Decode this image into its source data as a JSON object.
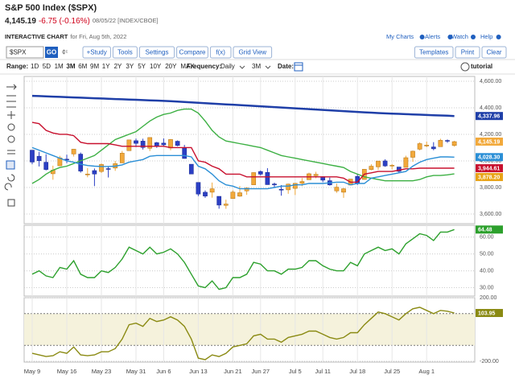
{
  "header": {
    "title": "S&P 500 Index ($SPX)",
    "price": "4,145.19",
    "change": "-6.75 (-0.16%)",
    "date": "08/05/22 [INDEX/CBOE]",
    "chart_label": "INTERACTIVE CHART",
    "chart_for": "for Fri, Aug 5th, 2022",
    "links": [
      "My Charts",
      "Alerts",
      "Watch",
      "Help"
    ]
  },
  "toolbar": {
    "symbol": "$SPX",
    "go": "GO",
    "buttons": [
      "+Study",
      "Tools",
      "Settings",
      "Compare",
      "f(x)",
      "Grid View"
    ],
    "right_buttons": [
      "Templates",
      "Print",
      "Clear"
    ],
    "range_label": "Range:",
    "ranges": [
      "1D",
      "5D",
      "1M",
      "3M",
      "6M",
      "9M",
      "1Y",
      "2Y",
      "3Y",
      "5Y",
      "10Y",
      "20Y",
      "MAX"
    ],
    "frequency_label": "Frequency:",
    "frequency": "Daily",
    "period": "3M",
    "date_label": "Date:",
    "tutorial": "tutorial"
  },
  "chart_data": [
    {
      "type": "candlestick",
      "categories": [
        "May 9",
        null,
        null,
        null,
        null,
        "May 16",
        null,
        null,
        null,
        null,
        "May 23",
        null,
        null,
        null,
        null,
        "May 31",
        null,
        null,
        null,
        "Jun 6",
        null,
        null,
        null,
        null,
        "Jun 13",
        null,
        null,
        null,
        null,
        "Jun 21",
        null,
        null,
        null,
        "Jun 27",
        null,
        null,
        null,
        null,
        "Jul 5",
        null,
        null,
        null,
        "Jul 11",
        null,
        null,
        null,
        null,
        "Jul 18",
        null,
        null,
        null,
        null,
        "Jul 25",
        null,
        null,
        null,
        null,
        "Aug 1",
        null,
        null,
        null,
        null
      ],
      "candles": [
        [
          4081,
          4081,
          3975,
          3991
        ],
        [
          4035,
          4068,
          3958,
          4001
        ],
        [
          3990,
          4050,
          3928,
          3935
        ],
        [
          3903,
          3964,
          3858,
          3930
        ],
        [
          3963,
          4038,
          3963,
          4023
        ],
        [
          4013,
          4047,
          3983,
          4008
        ],
        [
          4052,
          4090,
          4033,
          4088
        ],
        [
          4051,
          4063,
          3911,
          3923
        ],
        [
          3900,
          3946,
          3877,
          3901
        ],
        [
          3927,
          3943,
          3810,
          3901
        ],
        [
          3920,
          3981,
          3909,
          3973
        ],
        [
          3942,
          3955,
          3875,
          3941
        ],
        [
          3946,
          3999,
          3925,
          3979
        ],
        [
          3985,
          4075,
          3984,
          4058
        ],
        [
          4077,
          4158,
          4077,
          4158
        ],
        [
          4152,
          4168,
          4104,
          4132
        ],
        [
          4149,
          4167,
          4085,
          4101
        ],
        [
          4095,
          4177,
          4074,
          4176
        ],
        [
          4137,
          4143,
          4098,
          4109
        ],
        [
          4134,
          4169,
          4109,
          4121
        ],
        [
          4097,
          4165,
          4080,
          4161
        ],
        [
          4148,
          4154,
          4110,
          4116
        ],
        [
          4101,
          4120,
          4017,
          4018
        ],
        [
          3975,
          3975,
          3900,
          3901
        ],
        [
          3838,
          3838,
          3735,
          3750
        ],
        [
          3764,
          3778,
          3722,
          3735
        ],
        [
          3764,
          3837,
          3723,
          3790
        ],
        [
          3733,
          3733,
          3640,
          3667
        ],
        [
          3665,
          3708,
          3639,
          3675
        ],
        [
          3716,
          3779,
          3716,
          3765
        ],
        [
          3734,
          3810,
          3729,
          3760
        ],
        [
          3774,
          3802,
          3744,
          3796
        ],
        [
          3820,
          3914,
          3820,
          3912
        ],
        [
          3920,
          3928,
          3889,
          3900
        ],
        [
          3913,
          3945,
          3820,
          3821
        ],
        [
          3826,
          3836,
          3800,
          3819
        ],
        [
          3786,
          3818,
          3738,
          3785
        ],
        [
          3782,
          3829,
          3752,
          3825
        ],
        [
          3793,
          3833,
          3743,
          3831
        ],
        [
          3831,
          3871,
          3810,
          3845
        ],
        [
          3858,
          3911,
          3858,
          3903
        ],
        [
          3888,
          3918,
          3869,
          3899
        ],
        [
          3881,
          3881,
          3840,
          3855
        ],
        [
          3851,
          3874,
          3814,
          3819
        ],
        [
          3774,
          3829,
          3759,
          3802
        ],
        [
          3764,
          3796,
          3722,
          3790
        ],
        [
          3818,
          3863,
          3818,
          3863
        ],
        [
          3883,
          3902,
          3819,
          3831
        ],
        [
          3860,
          3939,
          3860,
          3937
        ],
        [
          3935,
          3975,
          3929,
          3960
        ],
        [
          3955,
          4000,
          3933,
          3999
        ],
        [
          4000,
          4012,
          3955,
          3962
        ],
        [
          3966,
          3976,
          3936,
          3967
        ],
        [
          3954,
          3954,
          3910,
          3921
        ],
        [
          3951,
          4039,
          3951,
          4024
        ],
        [
          4027,
          4078,
          3993,
          4073
        ],
        [
          4088,
          4140,
          4079,
          4130
        ],
        [
          4112,
          4145,
          4103,
          4119
        ],
        [
          4105,
          4141,
          4080,
          4091
        ],
        [
          4107,
          4167,
          4107,
          4155
        ],
        [
          4154,
          4161,
          4136,
          4152
        ],
        [
          4116,
          4151,
          4107,
          4145
        ]
      ],
      "up_color": "#f2a93b",
      "down_color": "#2b3fc4",
      "series": [
        {
          "color": "#1f3fa8",
          "values": [
            4490,
            4488,
            4486,
            4484,
            4482,
            4480,
            4478,
            4476,
            4474,
            4472,
            4470,
            4468,
            4466,
            4464,
            4462,
            4460,
            4458,
            4456,
            4454,
            4452,
            4450,
            4447,
            4444,
            4441,
            4438,
            4435,
            4432,
            4429,
            4426,
            4423,
            4420,
            4417,
            4414,
            4411,
            4408,
            4405,
            4402,
            4399,
            4396,
            4393,
            4390,
            4387,
            4384,
            4381,
            4378,
            4375,
            4372,
            4369,
            4366,
            4363,
            4360,
            4358,
            4356,
            4354,
            4352,
            4350,
            4348,
            4346,
            4344,
            4342,
            4340,
            4338
          ]
        },
        {
          "color": "#3cb043",
          "values": [
            3830,
            3860,
            3900,
            3930,
            3950,
            3960,
            3980,
            4000,
            4020,
            4040,
            4080,
            4120,
            4160,
            4180,
            4200,
            4220,
            4260,
            4300,
            4330,
            4350,
            4360,
            4380,
            4390,
            4390,
            4360,
            4300,
            4230,
            4180,
            4150,
            4140,
            4130,
            4120,
            4110,
            4100,
            4080,
            4060,
            4040,
            4030,
            4020,
            4010,
            4000,
            3990,
            3980,
            3970,
            3960,
            3950,
            3920,
            3900,
            3880,
            3870,
            3860,
            3850,
            3850,
            3850,
            3850,
            3850,
            3860,
            3880,
            3890,
            3890,
            3895,
            3902
          ]
        },
        {
          "color": "#c8102e",
          "values": [
            4290,
            4280,
            4230,
            4210,
            4200,
            4200,
            4190,
            4140,
            4130,
            4130,
            4130,
            4130,
            4120,
            4110,
            4110,
            4110,
            4110,
            4110,
            4110,
            4110,
            4100,
            4100,
            4100,
            4100,
            4000,
            3990,
            3960,
            3940,
            3900,
            3900,
            3900,
            3880,
            3880,
            3880,
            3880,
            3880,
            3880,
            3880,
            3880,
            3880,
            3880,
            3880,
            3880,
            3880,
            3880,
            3870,
            3840,
            3840,
            3900,
            3910,
            3920,
            3920,
            3920,
            3930,
            3940,
            3940,
            3945,
            3945,
            3945,
            3945,
            3945,
            3945
          ]
        },
        {
          "color": "#2b8fd6",
          "values": [
            4100,
            4080,
            4060,
            4040,
            4020,
            4000,
            3990,
            3975,
            3965,
            3960,
            3958,
            3958,
            3960,
            3970,
            3990,
            4000,
            4010,
            4035,
            4040,
            4040,
            4040,
            4040,
            4040,
            4030,
            3960,
            3940,
            3900,
            3850,
            3820,
            3810,
            3790,
            3790,
            3790,
            3790,
            3790,
            3800,
            3810,
            3810,
            3820,
            3820,
            3830,
            3830,
            3830,
            3835,
            3840,
            3840,
            3820,
            3830,
            3830,
            3870,
            3880,
            3890,
            3900,
            3910,
            3920,
            3960,
            3990,
            4010,
            4020,
            4030,
            4030,
            4028
          ]
        }
      ],
      "ylim": [
        3527,
        4636
      ],
      "yticks": [
        {
          "value": 3600,
          "label": "3,600.00"
        },
        {
          "value": 3800,
          "label": "3,800.00"
        },
        {
          "value": 4000,
          "label": "4,000.00"
        },
        {
          "value": 4200,
          "label": "4,200.00"
        },
        {
          "value": 4400,
          "label": "4,400.00"
        },
        {
          "value": 4600,
          "label": "4,600.00"
        }
      ],
      "markers": [
        {
          "value": 4337.96,
          "label": "4,337.96",
          "color": "#1f3fa8"
        },
        {
          "value": 4145.19,
          "label": "4,145.19",
          "color": "#f2a93b"
        },
        {
          "value": 4028.3,
          "label": "4,028.30",
          "color": "#2b8fd6"
        },
        {
          "value": 3944.61,
          "label": "3,944.61",
          "color": "#c8102e"
        },
        {
          "value": 3878.2,
          "label": "3,878.20",
          "color": "#e8a317"
        }
      ]
    },
    {
      "type": "line",
      "series": [
        {
          "color": "#2ca02c",
          "values": [
            38,
            40,
            37,
            36,
            42,
            41,
            46,
            38,
            36,
            36,
            40,
            39,
            42,
            47,
            54,
            52,
            50,
            54,
            50,
            51,
            53,
            50,
            45,
            38,
            31,
            30,
            34,
            29,
            30,
            36,
            36,
            38,
            45,
            44,
            40,
            40,
            38,
            41,
            41,
            42,
            46,
            46,
            43,
            41,
            40,
            40,
            45,
            43,
            50,
            52,
            54,
            52,
            53,
            50,
            56,
            59,
            62,
            61,
            58,
            63,
            63,
            64.48
          ]
        }
      ],
      "ylim": [
        25,
        67
      ],
      "yticks": [
        {
          "value": 30,
          "label": "30.00"
        },
        {
          "value": 40,
          "label": "40.00"
        },
        {
          "value": 50,
          "label": "50.00"
        },
        {
          "value": 60,
          "label": "60.00"
        }
      ],
      "markers": [
        {
          "value": 64.48,
          "label": "64.48",
          "color": "#2ca02c"
        }
      ]
    },
    {
      "type": "line",
      "series": [
        {
          "color": "#8a8a12",
          "values": [
            -150,
            -160,
            -170,
            -165,
            -140,
            -150,
            -110,
            -160,
            -165,
            -160,
            -140,
            -140,
            -120,
            -60,
            30,
            40,
            20,
            70,
            50,
            60,
            80,
            60,
            20,
            -60,
            -180,
            -190,
            -160,
            -170,
            -150,
            -110,
            -100,
            -90,
            -40,
            -30,
            -60,
            -60,
            -80,
            -50,
            -40,
            -30,
            -10,
            -10,
            -30,
            -50,
            -60,
            -50,
            -20,
            -20,
            30,
            70,
            110,
            100,
            80,
            60,
            100,
            130,
            140,
            120,
            100,
            120,
            115,
            103.95
          ]
        }
      ],
      "ylim": [
        -205,
        200
      ],
      "yticks": [
        {
          "value": -200,
          "label": "-200.00"
        },
        {
          "value": 200,
          "label": "200.00"
        }
      ],
      "band": [
        -100,
        100
      ],
      "band_color": "#f5f2dc",
      "markers": [
        {
          "value": 103.95,
          "label": "103.95",
          "color": "#8a8a12"
        }
      ]
    }
  ]
}
